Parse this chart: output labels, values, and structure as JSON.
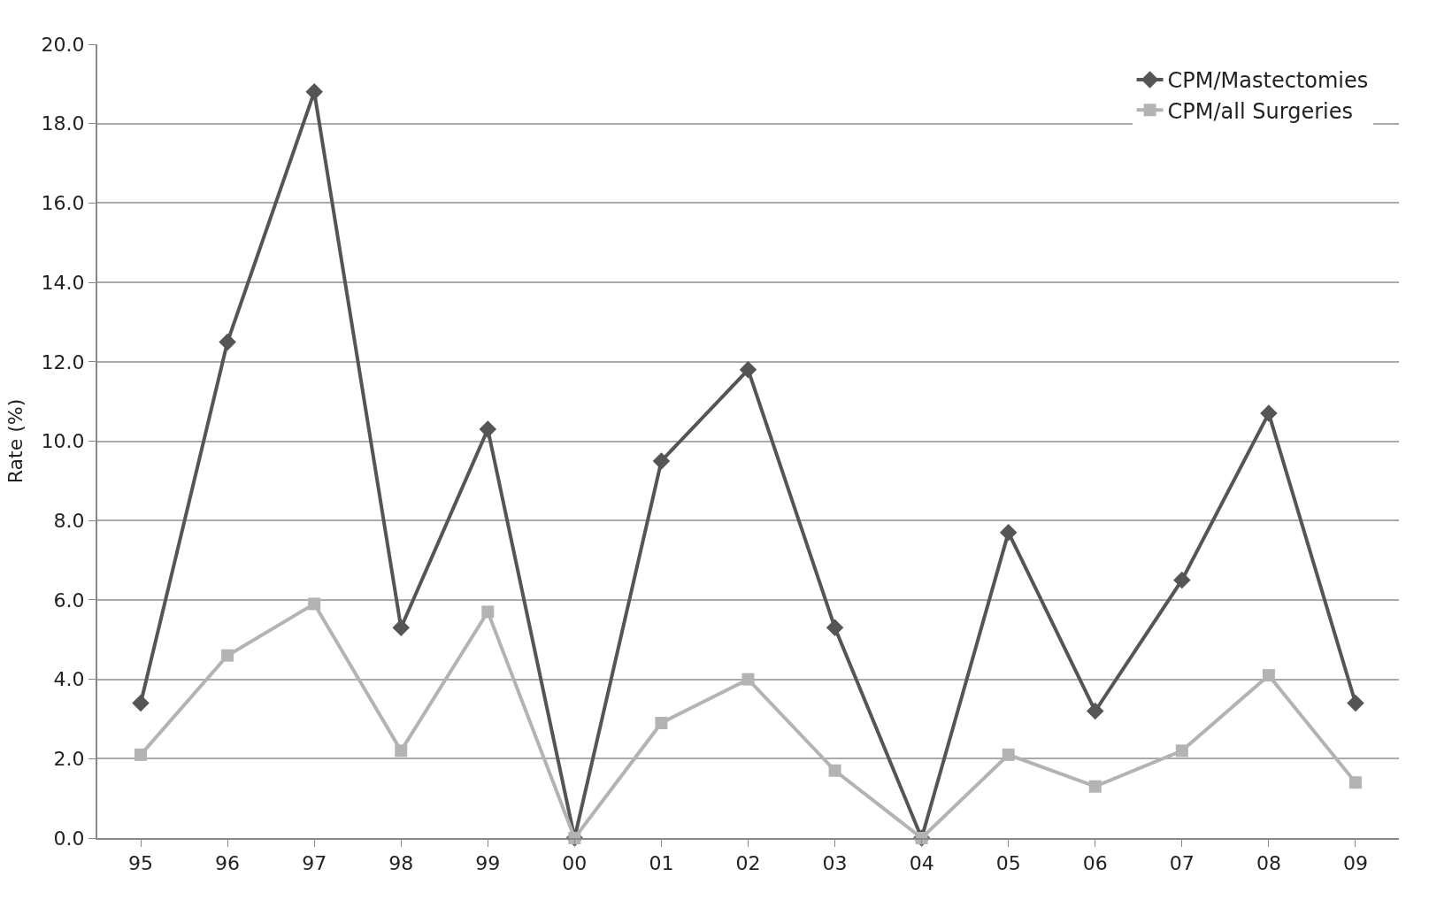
{
  "chart_data": {
    "type": "line",
    "ylabel": "Rate (%)",
    "categories": [
      "95",
      "96",
      "97",
      "98",
      "99",
      "00",
      "01",
      "02",
      "03",
      "04",
      "05",
      "06",
      "07",
      "08",
      "09"
    ],
    "series": [
      {
        "name": "CPM/Mastectomies",
        "color": "#555555",
        "marker": "diamond",
        "values": [
          3.4,
          12.5,
          18.8,
          5.3,
          10.3,
          0,
          9.5,
          11.8,
          5.3,
          0,
          7.7,
          3.2,
          6.5,
          10.7,
          3.4
        ]
      },
      {
        "name": "CPM/all Surgeries",
        "color": "#b3b3b3",
        "marker": "square",
        "values": [
          2.1,
          4.6,
          5.9,
          2.2,
          5.7,
          0,
          2.9,
          4.0,
          1.7,
          0,
          2.1,
          1.3,
          2.2,
          4.1,
          1.4
        ]
      }
    ],
    "ylim": [
      0,
      20
    ],
    "yticks": [
      {
        "value": 0,
        "label": "0.0"
      },
      {
        "value": 2,
        "label": "2.0"
      },
      {
        "value": 4,
        "label": "4.0"
      },
      {
        "value": 6,
        "label": "6.0"
      },
      {
        "value": 8,
        "label": "8.0"
      },
      {
        "value": 10,
        "label": "10.0"
      },
      {
        "value": 12,
        "label": "12.0"
      },
      {
        "value": 14,
        "label": "14.0"
      },
      {
        "value": 16,
        "label": "16.0"
      },
      {
        "value": 18,
        "label": "18.0"
      },
      {
        "value": 20,
        "label": "20.0"
      }
    ],
    "grid": "y",
    "legend": "top right",
    "line_style": "solid"
  }
}
